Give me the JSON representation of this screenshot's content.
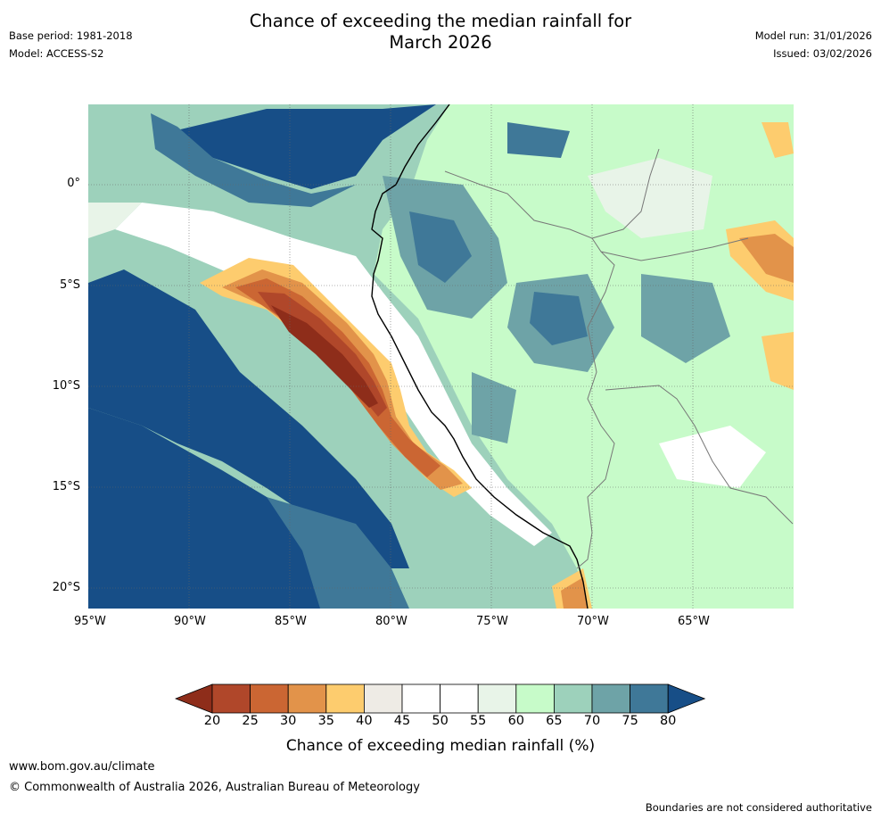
{
  "header": {
    "title_line1": "Chance of exceeding the median rainfall for",
    "title_line2": "March 2026",
    "base_period": "Base period: 1981-2018",
    "model": "Model: ACCESS-S2",
    "model_run": "Model run: 31/01/2026",
    "issued": "Issued: 03/02/2026"
  },
  "map": {
    "lon_ticks": [
      "95°W",
      "90°W",
      "85°W",
      "80°W",
      "75°W",
      "70°W",
      "65°W"
    ],
    "lat_ticks": [
      "0°",
      "5°S",
      "10°S",
      "15°S",
      "20°S"
    ]
  },
  "colorbar": {
    "labels": [
      "20",
      "25",
      "30",
      "35",
      "40",
      "45",
      "50",
      "55",
      "60",
      "65",
      "70",
      "75",
      "80"
    ],
    "colors": [
      "#8e2d1a",
      "#b0472a",
      "#cb6633",
      "#e2934a",
      "#fdcc6e",
      "#eeebe5",
      "#ffffff",
      "#ffffff",
      "#e8f4e8",
      "#c7fbc9",
      "#9dd1bb",
      "#6ea3a7",
      "#3f7898",
      "#174e87"
    ],
    "title": "Chance of exceeding median rainfall (%)"
  },
  "footer": {
    "url": "www.bom.gov.au/climate",
    "copyright": "© Commonwealth of Australia 2026, Australian Bureau of Meteorology",
    "disclaimer": "Boundaries are not considered authoritative"
  }
}
